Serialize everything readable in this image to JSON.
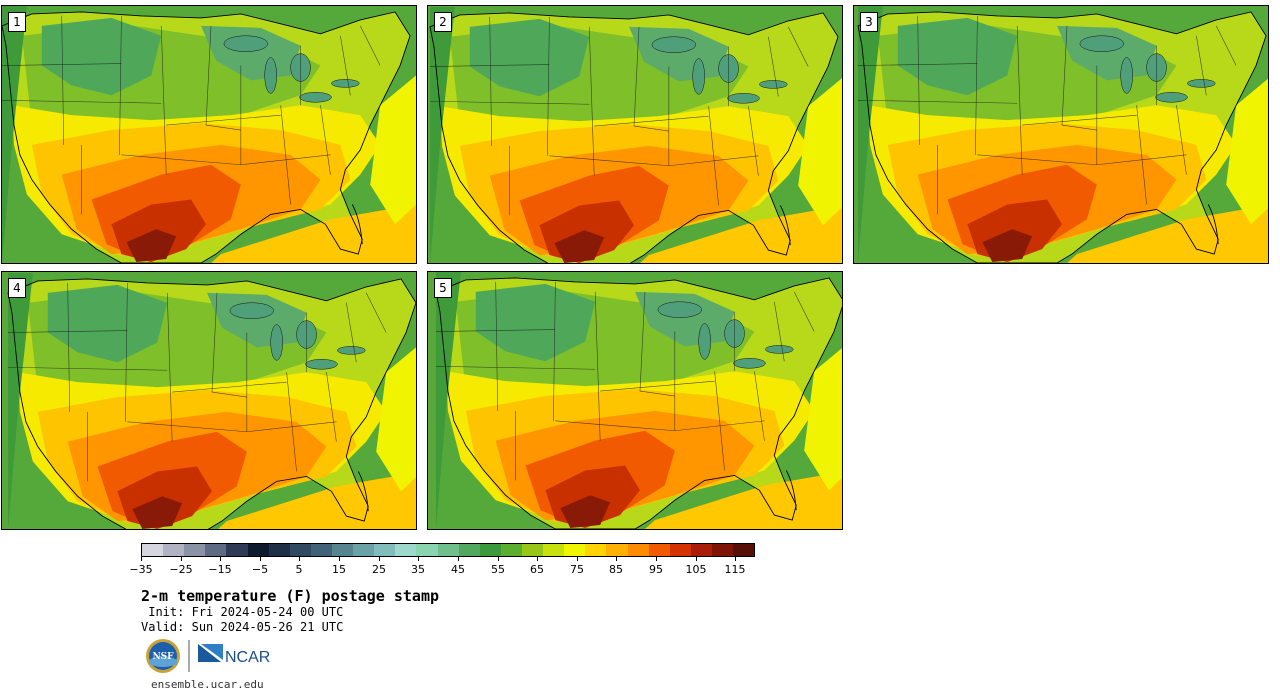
{
  "figure": {
    "title": "2-m temperature (F) postage stamp",
    "init_label": "Init:",
    "init_value": "Fri 2024-05-24 00 UTC",
    "valid_label": "Valid:",
    "valid_value": "Sun 2024-05-26 21 UTC",
    "website": "ensemble.ucar.edu"
  },
  "members": [
    {
      "label": "1"
    },
    {
      "label": "2"
    },
    {
      "label": "3"
    },
    {
      "label": "4"
    },
    {
      "label": "5"
    }
  ],
  "colorbar": {
    "unit": "F",
    "min": -35,
    "max": 120,
    "tick_labels": [
      "−35",
      "−25",
      "−15",
      "−5",
      "5",
      "15",
      "25",
      "35",
      "45",
      "55",
      "65",
      "75",
      "85",
      "95",
      "105",
      "115"
    ],
    "tick_values": [
      -35,
      -25,
      -15,
      -5,
      5,
      15,
      25,
      35,
      45,
      55,
      65,
      75,
      85,
      95,
      105,
      115
    ],
    "colors": [
      "#d6d6e0",
      "#b0b4c2",
      "#8a93a6",
      "#5f6b83",
      "#2e3a56",
      "#0e1a2e",
      "#1e3048",
      "#2f4a63",
      "#40637a",
      "#568590",
      "#6aa2a8",
      "#80bdbb",
      "#9ed8cc",
      "#8ad5b0",
      "#6fc08a",
      "#52a860",
      "#3d9a3c",
      "#5ab02e",
      "#96c61a",
      "#c8e00e",
      "#f0f500",
      "#ffd400",
      "#ffb000",
      "#ff8c00",
      "#f25a00",
      "#d43200",
      "#a81e0a",
      "#7d1406",
      "#571006"
    ]
  },
  "logos": {
    "nsf_text": "NSF",
    "ncar_text": "NCAR"
  }
}
